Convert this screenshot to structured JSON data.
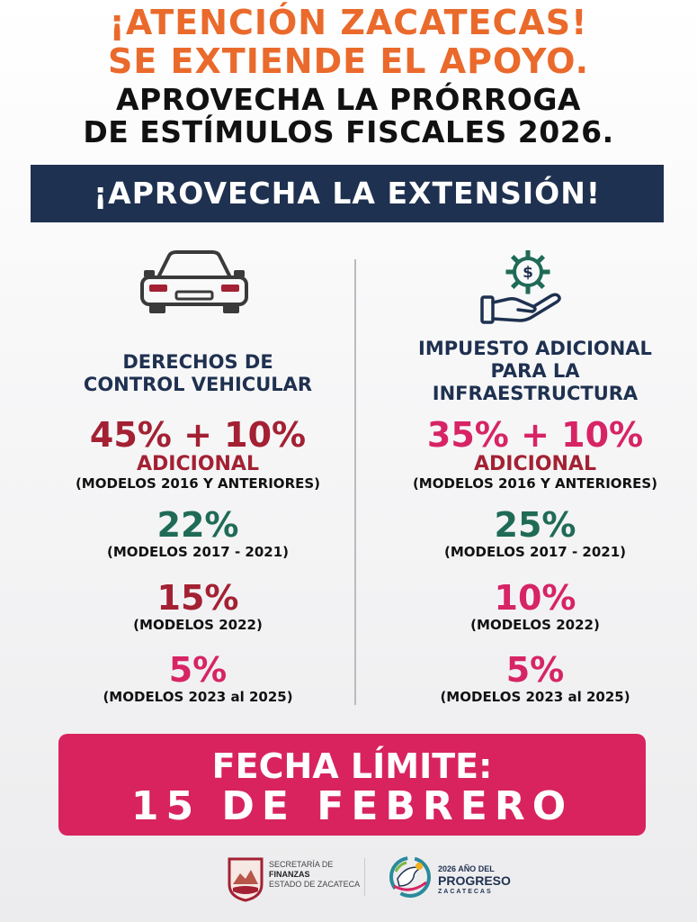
{
  "header": {
    "line1": "¡ATENCIÓN ZACATECAS!",
    "line2": "SE EXTIENDE EL APOYO.",
    "line3": "APROVECHA LA PRÓRROGA",
    "line4": "DE ESTÍMULOS FISCALES 2026."
  },
  "banner": "¡APROVECHA LA EXTENSIÓN!",
  "left_column": {
    "icon": "car-icon",
    "title_line1": "DERECHOS DE",
    "title_line2": "CONTROL VEHICULAR",
    "tiers": [
      {
        "discount": "45% + 10%",
        "extra": "ADICIONAL",
        "models": "(MODELOS 2016 Y ANTERIORES)"
      },
      {
        "discount": "22%",
        "models": "(MODELOS 2017 - 2021)"
      },
      {
        "discount": "15%",
        "models": "(MODELOS 2022)"
      },
      {
        "discount": "5%",
        "models": "(MODELOS 2023 al 2025)"
      }
    ]
  },
  "right_column": {
    "icon": "hand-gear-dollar-icon",
    "title_line1": "IMPUESTO ADICIONAL",
    "title_line2": "PARA LA",
    "title_line3": "INFRAESTRUCTURA",
    "tiers": [
      {
        "discount": "35% + 10%",
        "extra": "ADICIONAL",
        "models": "(MODELOS 2016 Y ANTERIORES)"
      },
      {
        "discount": "25%",
        "models": "(MODELOS 2017 - 2021)"
      },
      {
        "discount": "10%",
        "models": "(MODELOS 2022)"
      },
      {
        "discount": "5%",
        "models": "(MODELOS 2023 al 2025)"
      }
    ]
  },
  "deadline": {
    "label": "FECHA LÍMITE:",
    "date": "15 DE FEBRERO"
  },
  "footer": {
    "secretaria_line1": "SECRETARÍA DE",
    "secretaria_line2": "FINANZAS",
    "secretaria_line3": "ESTADO DE ZACATECA",
    "year_line1": "2026 AÑO DEL",
    "year_line2": "PROGRESO",
    "year_line3": "ZACATECAS"
  },
  "colors": {
    "orange": "#ea6a2c",
    "navy": "#1f3150",
    "dark_red": "#a32133",
    "pink": "#d72465",
    "green": "#1f6b56"
  }
}
